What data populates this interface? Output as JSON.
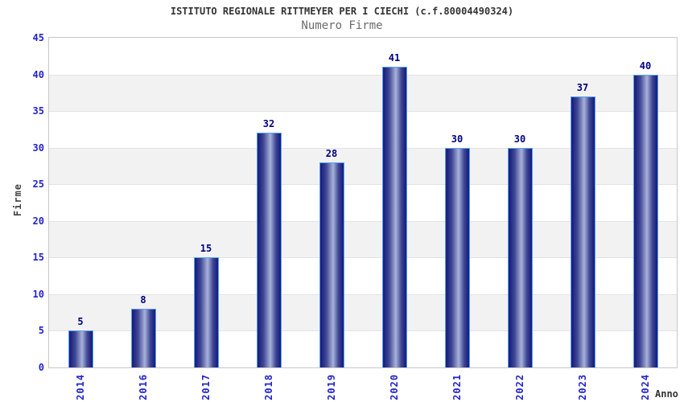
{
  "chart_data": {
    "type": "bar",
    "title": "ISTITUTO REGIONALE RITTMEYER PER I CIECHI (c.f.80004490324)",
    "subtitle": "Numero Firme",
    "xlabel": "Anno",
    "ylabel": "Firme",
    "categories": [
      "2014",
      "2016",
      "2017",
      "2018",
      "2019",
      "2020",
      "2021",
      "2022",
      "2023",
      "2024"
    ],
    "values": [
      5,
      8,
      15,
      32,
      28,
      41,
      30,
      30,
      37,
      40
    ],
    "yticks": [
      0,
      5,
      10,
      15,
      20,
      25,
      30,
      35,
      40,
      45
    ],
    "ylim": [
      0,
      45
    ],
    "grid": "alternating-horizontal-bands",
    "legend": "none",
    "colors": {
      "bar_dark": "#1b2080",
      "bar_mid": "#3f4894",
      "bar_light": "#a9b2da",
      "bar_border": "#54a1f5",
      "tick_label": "#2323cc",
      "value_label": "#000080",
      "title_text": "#333333",
      "subtitle_text": "#6b6b6b",
      "band_white": "#ffffff",
      "band_gray": "#f2f2f2",
      "band_line": "#e3e3e3",
      "plot_border": "#c8c8c8"
    }
  }
}
